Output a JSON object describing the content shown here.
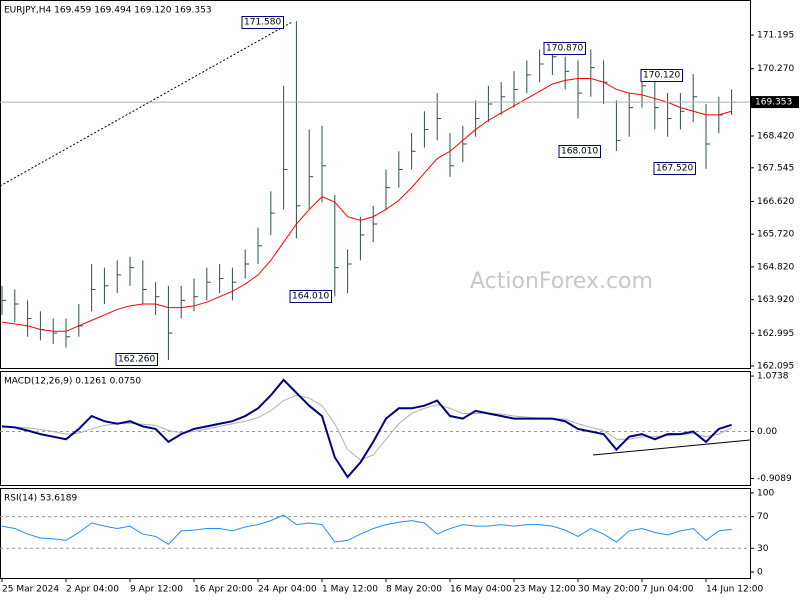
{
  "watermark": "ActionForex.com",
  "chart_data": [
    {
      "type": "ohlc",
      "title": "EURJPY,H4  169.459 169.494 169.120 169.353",
      "categories": [
        "25 Mar 2024",
        null,
        null,
        null,
        null,
        "2 Apr 04:00",
        null,
        null,
        null,
        null,
        "9 Apr 12:00",
        null,
        null,
        null,
        null,
        "16 Apr 20:00",
        null,
        null,
        null,
        null,
        "24 Apr 04:00",
        null,
        null,
        null,
        null,
        "1 May 12:00",
        null,
        null,
        null,
        null,
        "8 May 20:00",
        null,
        null,
        null,
        null,
        "16 May 04:00",
        null,
        null,
        null,
        null,
        "23 May 12:00",
        null,
        null,
        null,
        null,
        "30 May 20:00",
        null,
        null,
        null,
        null,
        "7 Jun 04:00",
        null,
        null,
        null,
        null,
        "14 Jun 12:00",
        null,
        null
      ],
      "series": [
        {
          "color": "#2f4f4f",
          "high": [
            164.3,
            164.2,
            163.9,
            163.6,
            163.4,
            163.4,
            163.8,
            164.9,
            164.8,
            165.0,
            165.1,
            165.0,
            164.4,
            164.3,
            164.3,
            164.5,
            164.8,
            164.9,
            164.8,
            165.3,
            165.9,
            166.9,
            169.8,
            171.58,
            168.6,
            168.7,
            166.8,
            165.3,
            166.2,
            166.5,
            167.5,
            168.0,
            168.5,
            169.1,
            169.6,
            168.5,
            168.7,
            169.4,
            169.8,
            169.9,
            170.2,
            170.5,
            170.8,
            170.87,
            170.6,
            170.5,
            170.8,
            170.5,
            169.4,
            169.6,
            170.1,
            170.0,
            169.6,
            169.6,
            170.12,
            169.3,
            169.5,
            169.7
          ],
          "low": [
            163.5,
            163.3,
            162.9,
            162.8,
            162.7,
            162.6,
            162.9,
            163.6,
            163.8,
            164.1,
            164.3,
            163.8,
            163.5,
            162.26,
            163.4,
            163.6,
            163.9,
            164.1,
            163.9,
            164.5,
            164.9,
            165.7,
            166.4,
            165.6,
            166.4,
            166.6,
            164.01,
            164.1,
            165.0,
            165.5,
            166.4,
            167.0,
            167.5,
            168.1,
            168.3,
            167.3,
            167.7,
            168.4,
            168.8,
            169.0,
            169.2,
            169.6,
            169.9,
            170.1,
            169.7,
            168.9,
            169.5,
            169.3,
            168.01,
            168.4,
            169.2,
            168.6,
            168.4,
            168.6,
            168.8,
            167.52,
            168.5,
            169.0
          ],
          "close": [
            163.9,
            163.8,
            163.4,
            163.1,
            163.0,
            162.9,
            163.2,
            164.2,
            164.3,
            164.6,
            164.8,
            164.2,
            164.0,
            163.0,
            163.9,
            164.0,
            164.4,
            164.5,
            164.4,
            164.9,
            165.4,
            166.3,
            167.5,
            166.5,
            167.3,
            167.6,
            164.8,
            164.9,
            165.7,
            166.0,
            167.0,
            167.5,
            168.0,
            168.6,
            168.9,
            167.6,
            168.2,
            168.9,
            169.3,
            169.5,
            169.7,
            170.1,
            170.4,
            170.6,
            170.2,
            169.6,
            170.3,
            169.9,
            168.3,
            169.2,
            169.8,
            169.2,
            168.9,
            169.1,
            169.5,
            168.2,
            169.0,
            169.35
          ]
        },
        {
          "color": "#ff0000",
          "values": [
            163.3,
            163.25,
            163.2,
            163.1,
            163.05,
            163.05,
            163.2,
            163.35,
            163.5,
            163.65,
            163.75,
            163.8,
            163.8,
            163.7,
            163.7,
            163.75,
            163.85,
            164.0,
            164.15,
            164.35,
            164.6,
            165.0,
            165.5,
            166.0,
            166.4,
            166.75,
            166.6,
            166.2,
            166.1,
            166.2,
            166.4,
            166.65,
            167.0,
            167.4,
            167.8,
            168.0,
            168.3,
            168.6,
            168.85,
            169.05,
            169.25,
            169.45,
            169.65,
            169.85,
            169.95,
            170.0,
            170.0,
            169.9,
            169.7,
            169.6,
            169.55,
            169.45,
            169.35,
            169.2,
            169.1,
            169.0,
            169.0,
            169.1
          ]
        }
      ],
      "ylim": [
        162.04,
        172.16
      ],
      "yticks": [
        {
          "value": 171.195,
          "label": "171.195"
        },
        {
          "value": 170.27,
          "label": "170.270"
        },
        {
          "value": 169.345,
          "label": "169.345"
        },
        {
          "value": 168.42,
          "label": "168.420"
        },
        {
          "value": 167.545,
          "label": "167.545"
        },
        {
          "value": 166.62,
          "label": "166.620"
        },
        {
          "value": 165.72,
          "label": "165.720"
        },
        {
          "value": 164.82,
          "label": "164.820"
        },
        {
          "value": 163.92,
          "label": "163.920"
        },
        {
          "value": 162.995,
          "label": "162.995"
        },
        {
          "value": 162.095,
          "label": "162.095"
        }
      ],
      "last_price": {
        "value": 169.353,
        "label": "169.353"
      },
      "annotations": [
        "171.580",
        "170.870",
        "170.120",
        "168.010",
        "167.520",
        "164.010",
        "162.260"
      ]
    },
    {
      "type": "line",
      "title": "MACD(12,26,9) 0.1261 0.0750",
      "series": [
        {
          "color": "#000080",
          "values": [
            0.1,
            0.08,
            0.02,
            -0.05,
            -0.1,
            -0.15,
            0.05,
            0.3,
            0.2,
            0.15,
            0.2,
            0.1,
            0.05,
            -0.2,
            -0.05,
            0.05,
            0.1,
            0.15,
            0.2,
            0.3,
            0.45,
            0.7,
            1.0,
            0.75,
            0.5,
            0.3,
            -0.5,
            -0.88,
            -0.6,
            -0.2,
            0.25,
            0.45,
            0.45,
            0.5,
            0.6,
            0.3,
            0.25,
            0.4,
            0.35,
            0.3,
            0.25,
            0.25,
            0.25,
            0.25,
            0.2,
            0.05,
            0.0,
            -0.05,
            -0.35,
            -0.1,
            -0.05,
            -0.15,
            -0.05,
            -0.05,
            0.0,
            -0.2,
            0.05,
            0.13
          ]
        },
        {
          "color": "#b0b0b0",
          "values": [
            0.1,
            0.09,
            0.07,
            0.04,
            0.0,
            -0.05,
            -0.03,
            0.05,
            0.12,
            0.15,
            0.16,
            0.14,
            0.12,
            0.02,
            -0.02,
            0.0,
            0.05,
            0.1,
            0.15,
            0.2,
            0.27,
            0.4,
            0.6,
            0.7,
            0.65,
            0.5,
            0.15,
            -0.35,
            -0.55,
            -0.45,
            -0.15,
            0.15,
            0.35,
            0.45,
            0.52,
            0.45,
            0.35,
            0.35,
            0.36,
            0.34,
            0.3,
            0.28,
            0.26,
            0.25,
            0.24,
            0.15,
            0.08,
            0.02,
            -0.15,
            -0.15,
            -0.1,
            -0.1,
            -0.08,
            -0.06,
            -0.04,
            -0.1,
            -0.05,
            0.075
          ]
        }
      ],
      "ylim": [
        -1.035,
        1.172
      ],
      "yticks": [
        1.0738,
        {
          "value": 0,
          "label": "0.00"
        },
        -0.9089
      ],
      "levels": [
        0
      ]
    },
    {
      "type": "line",
      "title": "RSI(14) 53.6189",
      "series": [
        {
          "color": "#1e90ff",
          "values": [
            58,
            55,
            48,
            43,
            42,
            40,
            50,
            62,
            58,
            55,
            58,
            48,
            45,
            35,
            52,
            53,
            55,
            55,
            52,
            57,
            60,
            65,
            72,
            60,
            62,
            60,
            38,
            40,
            48,
            55,
            60,
            63,
            65,
            62,
            48,
            55,
            60,
            58,
            58,
            60,
            58,
            60,
            60,
            58,
            53,
            45,
            55,
            48,
            38,
            52,
            55,
            50,
            47,
            52,
            55,
            40,
            52,
            54
          ]
        }
      ],
      "ylim": [
        -7.6,
        106.3
      ],
      "yticks": [
        100,
        70,
        30,
        0
      ],
      "levels": [
        70,
        30
      ]
    }
  ]
}
